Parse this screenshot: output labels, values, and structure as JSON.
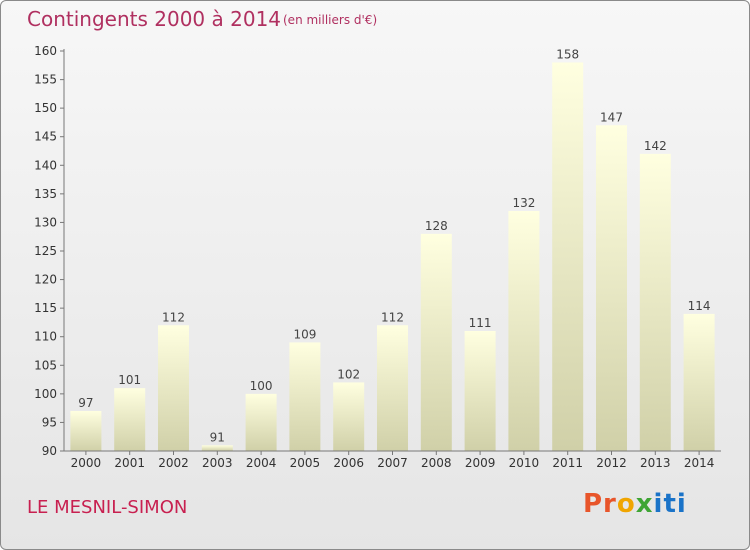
{
  "header": {
    "title": "Contingents 2000 à 2014",
    "subtitle": "(en milliers d'€)"
  },
  "footer": {
    "location": "LE MESNIL-SIMON",
    "logo": "Proxiti"
  },
  "colors": {
    "title": "#b03060",
    "bar_top": "#ffffe0",
    "bar_bottom": "#d0d0a8"
  },
  "chart_data": {
    "type": "bar",
    "title": "Contingents 2000 à 2014",
    "subtitle": "(en milliers d'€)",
    "categories": [
      "2000",
      "2001",
      "2002",
      "2003",
      "2004",
      "2005",
      "2006",
      "2007",
      "2008",
      "2009",
      "2010",
      "2011",
      "2012",
      "2013",
      "2014"
    ],
    "values": [
      97,
      101,
      112,
      91,
      100,
      109,
      102,
      112,
      128,
      111,
      132,
      158,
      147,
      142,
      114
    ],
    "ylim": [
      90,
      160
    ],
    "yticks": [
      90,
      95,
      100,
      105,
      110,
      115,
      120,
      125,
      130,
      135,
      140,
      145,
      150,
      155,
      160
    ],
    "grid": false,
    "data_labels": true
  }
}
